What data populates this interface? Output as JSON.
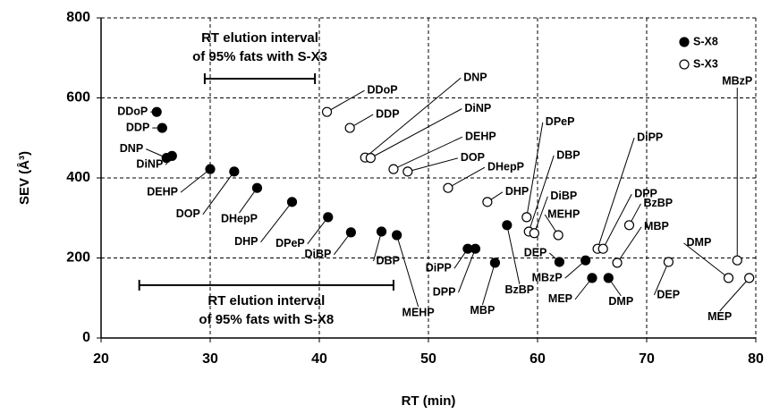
{
  "chart_data": {
    "type": "scatter",
    "xlabel": "RT (min)",
    "ylabel": "SEV (Å³)",
    "xlim": [
      20,
      80
    ],
    "xticks": [
      20,
      30,
      40,
      50,
      60,
      70,
      80
    ],
    "ylim": [
      0,
      800
    ],
    "yticks": [
      0,
      200,
      400,
      600,
      800
    ],
    "grid": true,
    "legend": "upper right",
    "series": [
      {
        "name": "S-X8",
        "marker": "filled",
        "color": "#000000",
        "labels": [
          "DDoP",
          "DDP",
          "DNP",
          "DiNP",
          "DEHP",
          "DOP",
          "DHepP",
          "DHP",
          "DPeP",
          "DiBP",
          "DBP",
          "MEHP",
          "DiPP",
          "DPP",
          "MBP",
          "BzBP",
          "DEP",
          "MBzP",
          "MEP",
          "DMP"
        ],
        "x": [
          25.1,
          25.6,
          26.0,
          26.5,
          30.0,
          32.2,
          34.3,
          37.5,
          40.8,
          42.9,
          45.7,
          47.1,
          53.6,
          54.3,
          56.1,
          57.2,
          62.0,
          64.4,
          65.0,
          66.5
        ],
        "values": [
          565,
          525,
          450,
          455,
          422,
          416,
          375,
          340,
          302,
          264,
          266,
          257,
          223,
          223,
          188,
          282,
          190,
          194,
          150,
          150
        ]
      },
      {
        "name": "S-X3",
        "marker": "open",
        "color": "#000000",
        "labels": [
          "DDoP",
          "DDP",
          "DNP",
          "DiNP",
          "DEHP",
          "DOP",
          "DHepP",
          "DHP",
          "DPeP",
          "DBP",
          "DiBP",
          "MEHP",
          "DiPP",
          "DPP",
          "BzBP",
          "MBP",
          "DEP",
          "DMP",
          "MBzP",
          "MEP"
        ],
        "x": [
          40.7,
          42.8,
          44.2,
          44.7,
          46.8,
          48.1,
          51.8,
          55.4,
          59.0,
          59.2,
          59.7,
          61.9,
          65.5,
          66.0,
          68.4,
          67.3,
          72.0,
          77.5,
          78.3,
          79.4
        ],
        "values": [
          565,
          525,
          451,
          450,
          422,
          416,
          375,
          340,
          302,
          266,
          262,
          257,
          223,
          223,
          282,
          188,
          190,
          150,
          194,
          150
        ]
      }
    ],
    "annotations": [
      {
        "text": [
          "RT elution interval",
          "of 95% fats with S-X3"
        ],
        "x_range": [
          29.5,
          39.6
        ],
        "y": 648
      },
      {
        "text": [
          "RT elution interval",
          "of 95% fats with S-X8"
        ],
        "x_range": [
          23.5,
          46.8
        ],
        "y": 132
      }
    ]
  }
}
